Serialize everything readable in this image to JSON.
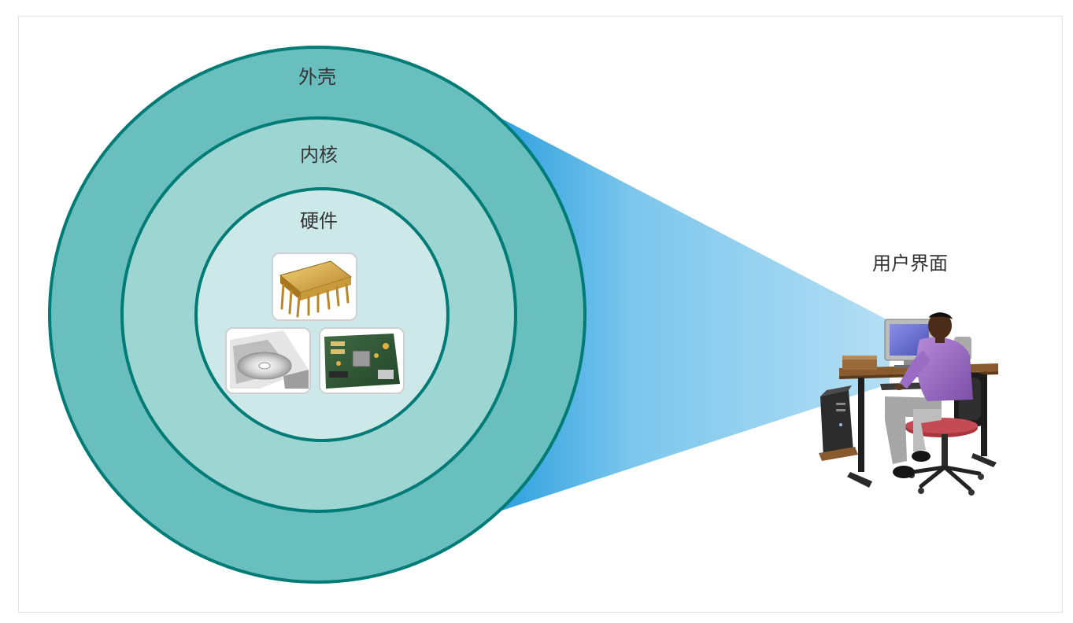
{
  "labels": {
    "shell": "外壳",
    "kernel": "内核",
    "hardware": "硬件",
    "user_interface": "用户界面"
  },
  "colors": {
    "shell_fill": "#69bfbd",
    "kernel_fill": "#9dd5d3",
    "hardware_fill": "#cde8e8",
    "ring_stroke": "#007b75",
    "beam_dark": "#3aa8e0",
    "beam_light": "#a7d9f2"
  },
  "icons": {
    "chip": "ic-chip-icon",
    "disc": "optical-disc-drive-icon",
    "board": "motherboard-icon",
    "user": "user-at-computer-icon"
  }
}
